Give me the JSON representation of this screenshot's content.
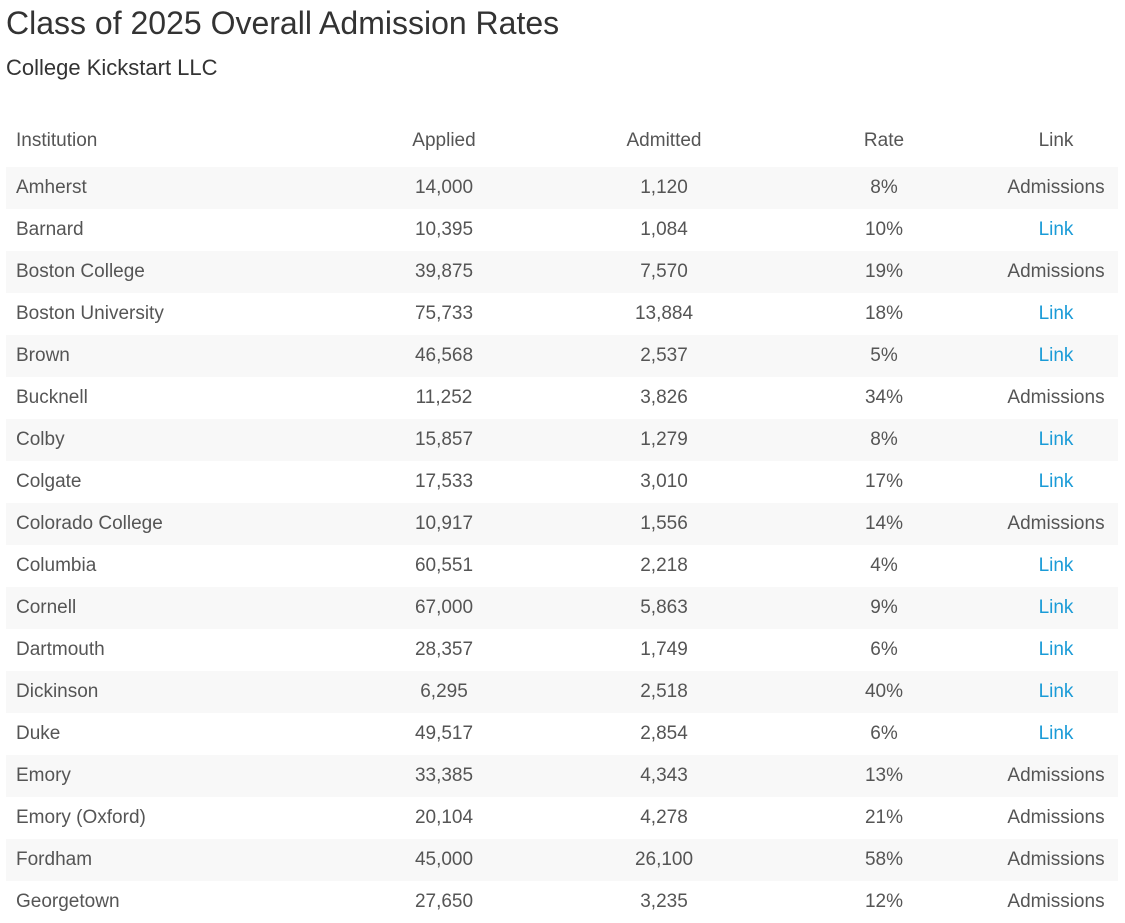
{
  "title": "Class of 2025 Overall Admission Rates",
  "subtitle": "College Kickstart LLC",
  "colors": {
    "text": "#555555",
    "heading": "#333333",
    "link": "#1a9bd7",
    "stripe": "#f8f8f8"
  },
  "table": {
    "headers": [
      "Institution",
      "Applied",
      "Admitted",
      "Rate",
      "Link"
    ],
    "rows": [
      {
        "institution": "Amherst",
        "applied": "14,000",
        "admitted": "1,120",
        "rate": "8%",
        "link": "Admissions",
        "link_style": "plain"
      },
      {
        "institution": "Barnard",
        "applied": "10,395",
        "admitted": "1,084",
        "rate": "10%",
        "link": "Link",
        "link_style": "link"
      },
      {
        "institution": "Boston College",
        "applied": "39,875",
        "admitted": "7,570",
        "rate": "19%",
        "link": "Admissions",
        "link_style": "plain"
      },
      {
        "institution": "Boston University",
        "applied": "75,733",
        "admitted": "13,884",
        "rate": "18%",
        "link": "Link",
        "link_style": "link"
      },
      {
        "institution": "Brown",
        "applied": "46,568",
        "admitted": "2,537",
        "rate": "5%",
        "link": "Link",
        "link_style": "link"
      },
      {
        "institution": "Bucknell",
        "applied": "11,252",
        "admitted": "3,826",
        "rate": "34%",
        "link": "Admissions",
        "link_style": "plain"
      },
      {
        "institution": "Colby",
        "applied": "15,857",
        "admitted": "1,279",
        "rate": "8%",
        "link": "Link",
        "link_style": "link"
      },
      {
        "institution": "Colgate",
        "applied": "17,533",
        "admitted": "3,010",
        "rate": "17%",
        "link": "Link",
        "link_style": "link"
      },
      {
        "institution": "Colorado College",
        "applied": "10,917",
        "admitted": "1,556",
        "rate": "14%",
        "link": "Admissions",
        "link_style": "plain"
      },
      {
        "institution": "Columbia",
        "applied": "60,551",
        "admitted": "2,218",
        "rate": "4%",
        "link": "Link",
        "link_style": "link"
      },
      {
        "institution": "Cornell",
        "applied": "67,000",
        "admitted": "5,863",
        "rate": "9%",
        "link": "Link",
        "link_style": "link"
      },
      {
        "institution": "Dartmouth",
        "applied": "28,357",
        "admitted": "1,749",
        "rate": "6%",
        "link": "Link",
        "link_style": "link"
      },
      {
        "institution": "Dickinson",
        "applied": "6,295",
        "admitted": "2,518",
        "rate": "40%",
        "link": "Link",
        "link_style": "link"
      },
      {
        "institution": "Duke",
        "applied": "49,517",
        "admitted": "2,854",
        "rate": "6%",
        "link": "Link",
        "link_style": "link"
      },
      {
        "institution": "Emory",
        "applied": "33,385",
        "admitted": "4,343",
        "rate": "13%",
        "link": "Admissions",
        "link_style": "plain"
      },
      {
        "institution": "Emory (Oxford)",
        "applied": "20,104",
        "admitted": "4,278",
        "rate": "21%",
        "link": "Admissions",
        "link_style": "plain"
      },
      {
        "institution": "Fordham",
        "applied": "45,000",
        "admitted": "26,100",
        "rate": "58%",
        "link": "Admissions",
        "link_style": "plain"
      },
      {
        "institution": "Georgetown",
        "applied": "27,650",
        "admitted": "3,235",
        "rate": "12%",
        "link": "Admissions",
        "link_style": "plain"
      }
    ]
  }
}
